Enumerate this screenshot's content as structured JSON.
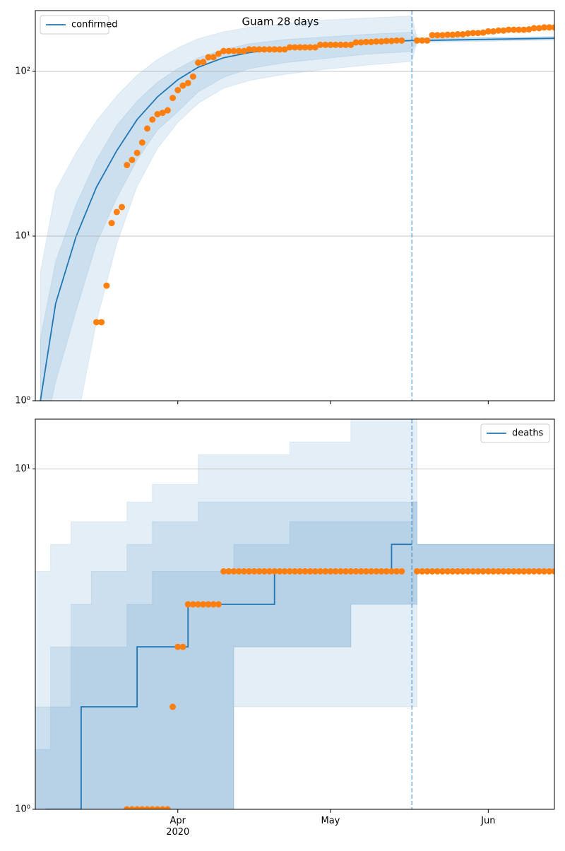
{
  "chart_data": [
    {
      "type": "line",
      "title": "Guam 28 days",
      "yscale": "log",
      "ylim": [
        1,
        234
      ],
      "xlim": [
        "2020-03-04",
        "2020-06-14"
      ],
      "yticks": [
        {
          "value": 1,
          "label": "10⁰"
        },
        {
          "value": 10,
          "label": "10¹"
        },
        {
          "value": 100,
          "label": "10²"
        }
      ],
      "grid": true,
      "legend": "upper left",
      "vline": "2020-05-17",
      "bands": {
        "color": "#1f77b4",
        "x": [
          "2020-03-05",
          "2020-03-08",
          "2020-03-12",
          "2020-03-16",
          "2020-03-20",
          "2020-03-24",
          "2020-03-28",
          "2020-04-01",
          "2020-04-05",
          "2020-04-10",
          "2020-04-15",
          "2020-04-22",
          "2020-04-30",
          "2020-05-08",
          "2020-05-17",
          "2020-05-18",
          "2020-06-14"
        ],
        "list": [
          {
            "lower": [
              0.2,
              0.3,
              0.7,
              3,
              9,
              20,
              34,
              49,
              64,
              79,
              88,
              96,
              103,
              109,
              115,
              150,
              155
            ],
            "upper": [
              6,
              19,
              32,
              50,
              71,
              95,
              118,
              139,
              158,
              174,
              185,
              195,
              205,
              211,
              217,
              160,
              163
            ]
          },
          {
            "lower": [
              0.5,
              1.3,
              3.5,
              9,
              17,
              29,
              44,
              57,
              75,
              92,
              104,
              113,
              120,
              127,
              132,
              152,
              157
            ],
            "upper": [
              2.4,
              7,
              15.5,
              29,
              47,
              66,
              86,
              104,
              121,
              136,
              147,
              156,
              162,
              168,
              173,
              158,
              162
            ]
          }
        ]
      },
      "series": [
        {
          "name": "confirmed",
          "color": "#1f77b4",
          "x": [
            "2020-03-05",
            "2020-03-08",
            "2020-03-12",
            "2020-03-16",
            "2020-03-20",
            "2020-03-24",
            "2020-03-28",
            "2020-04-01",
            "2020-04-05",
            "2020-04-10",
            "2020-04-15",
            "2020-04-22",
            "2020-04-30",
            "2020-05-08",
            "2020-05-17",
            "2020-05-18",
            "2020-06-14"
          ],
          "values": [
            1,
            3.9,
            9.9,
            19.8,
            33,
            51,
            70,
            89,
            106,
            121,
            130,
            139,
            143,
            150,
            154,
            154,
            159
          ]
        },
        {
          "marker": "o",
          "color": "#ff7f0e",
          "x": [
            "2020-03-16",
            "2020-03-17",
            "2020-03-18",
            "2020-03-19",
            "2020-03-20",
            "2020-03-21",
            "2020-03-22",
            "2020-03-23",
            "2020-03-24",
            "2020-03-25",
            "2020-03-26",
            "2020-03-27",
            "2020-03-28",
            "2020-03-29",
            "2020-03-30",
            "2020-03-31",
            "2020-04-01",
            "2020-04-02",
            "2020-04-03",
            "2020-04-04",
            "2020-04-05",
            "2020-04-06",
            "2020-04-07",
            "2020-04-08",
            "2020-04-09",
            "2020-04-10",
            "2020-04-11",
            "2020-04-12",
            "2020-04-13",
            "2020-04-14",
            "2020-04-15",
            "2020-04-16",
            "2020-04-17",
            "2020-04-18",
            "2020-04-19",
            "2020-04-20",
            "2020-04-21",
            "2020-04-22",
            "2020-04-23",
            "2020-04-24",
            "2020-04-25",
            "2020-04-26",
            "2020-04-27",
            "2020-04-28",
            "2020-04-29",
            "2020-04-30",
            "2020-05-01",
            "2020-05-02",
            "2020-05-03",
            "2020-05-04",
            "2020-05-05",
            "2020-05-06",
            "2020-05-07",
            "2020-05-08",
            "2020-05-09",
            "2020-05-10",
            "2020-05-11",
            "2020-05-12",
            "2020-05-13",
            "2020-05-14",
            "2020-05-15",
            "2020-05-18",
            "2020-05-19",
            "2020-05-20",
            "2020-05-21",
            "2020-05-22",
            "2020-05-23",
            "2020-05-24",
            "2020-05-25",
            "2020-05-26",
            "2020-05-27",
            "2020-05-28",
            "2020-05-29",
            "2020-05-30",
            "2020-05-31",
            "2020-06-01",
            "2020-06-02",
            "2020-06-03",
            "2020-06-04",
            "2020-06-05",
            "2020-06-06",
            "2020-06-07",
            "2020-06-08",
            "2020-06-09",
            "2020-06-10",
            "2020-06-11",
            "2020-06-12",
            "2020-06-13",
            "2020-06-14"
          ],
          "values": [
            3,
            3,
            5,
            12,
            14,
            15,
            27,
            29,
            32,
            37,
            45,
            51,
            55,
            56,
            58,
            69,
            77,
            82,
            85,
            93,
            113,
            114,
            122,
            122,
            128,
            133,
            133,
            133,
            133,
            133,
            136,
            136,
            136,
            136,
            136,
            136,
            136,
            136,
            140,
            140,
            140,
            140,
            140,
            140,
            145,
            145,
            145,
            145,
            145,
            145,
            145,
            150,
            150,
            151,
            151,
            152,
            152,
            153,
            153,
            154,
            154,
            154,
            154,
            154,
            166,
            166,
            166,
            167,
            167,
            168,
            168,
            170,
            171,
            171,
            172,
            175,
            175,
            177,
            177,
            179,
            179,
            179,
            179,
            180,
            183,
            183,
            185,
            185,
            185
          ]
        }
      ]
    },
    {
      "type": "line",
      "yscale": "log",
      "ylim": [
        1,
        14
      ],
      "xlim": [
        "2020-03-04",
        "2020-06-14"
      ],
      "drawstyle": "steps-post",
      "yticks": [
        {
          "value": 1,
          "label": "10⁰"
        },
        {
          "value": 10,
          "label": "10¹"
        }
      ],
      "xticks": [
        {
          "value": "2020-04-01",
          "label": "Apr\n2020"
        },
        {
          "value": "2020-05-01",
          "label": "May"
        },
        {
          "value": "2020-06-01",
          "label": "Jun"
        }
      ],
      "grid": true,
      "legend": "upper right",
      "vline": "2020-05-17",
      "bands": {
        "color": "#1f77b4",
        "x": [
          "2020-03-04",
          "2020-03-07",
          "2020-03-11",
          "2020-03-15",
          "2020-03-22",
          "2020-03-27",
          "2020-04-05",
          "2020-04-12",
          "2020-04-23",
          "2020-05-05",
          "2020-05-17",
          "2020-05-18",
          "2020-06-14"
        ],
        "list": [
          {
            "lower": [
              0.9,
              0.9,
              0.9,
              0.9,
              0.9,
              0.9,
              0.9,
              2,
              2,
              2,
              2,
              5,
              5
            ],
            "upper": [
              5,
              6,
              7,
              7,
              8,
              9,
              11,
              11,
              12,
              14,
              14,
              6,
              8
            ]
          },
          {
            "lower": [
              0.9,
              0.9,
              0.9,
              0.9,
              0.9,
              0.9,
              0.9,
              3,
              3,
              4,
              4,
              5,
              5
            ],
            "upper": [
              2,
              3,
              4,
              5,
              6,
              7,
              8,
              8,
              8,
              8,
              8,
              6,
              7
            ]
          },
          {
            "lower": [
              0.9,
              0.9,
              0.9,
              0.9,
              0.9,
              0.9,
              1,
              3,
              3,
              4,
              4,
              5,
              5
            ],
            "upper": [
              1.5,
              2,
              3,
              3,
              4,
              5,
              5,
              6,
              7,
              7,
              8,
              6,
              6
            ]
          }
        ]
      },
      "series": [
        {
          "name": "deaths",
          "color": "#1f77b4",
          "x": [
            "2020-03-06",
            "2020-03-13",
            "2020-03-24",
            "2020-04-03",
            "2020-04-20",
            "2020-05-13",
            "2020-05-17"
          ],
          "values": [
            1,
            2,
            3,
            4,
            5,
            6,
            6
          ]
        },
        {
          "marker": "o",
          "color": "#ff7f0e",
          "x": [
            "2020-03-22",
            "2020-03-23",
            "2020-03-24",
            "2020-03-25",
            "2020-03-26",
            "2020-03-27",
            "2020-03-28",
            "2020-03-29",
            "2020-03-30",
            "2020-03-31",
            "2020-04-01",
            "2020-04-02",
            "2020-04-03",
            "2020-04-04",
            "2020-04-05",
            "2020-04-06",
            "2020-04-07",
            "2020-04-08",
            "2020-04-09",
            "2020-04-10",
            "2020-04-11",
            "2020-04-12",
            "2020-04-13",
            "2020-04-14",
            "2020-04-15",
            "2020-04-16",
            "2020-04-17",
            "2020-04-18",
            "2020-04-19",
            "2020-04-20",
            "2020-04-21",
            "2020-04-22",
            "2020-04-23",
            "2020-04-24",
            "2020-04-25",
            "2020-04-26",
            "2020-04-27",
            "2020-04-28",
            "2020-04-29",
            "2020-04-30",
            "2020-05-01",
            "2020-05-02",
            "2020-05-03",
            "2020-05-04",
            "2020-05-05",
            "2020-05-06",
            "2020-05-07",
            "2020-05-08",
            "2020-05-09",
            "2020-05-10",
            "2020-05-11",
            "2020-05-12",
            "2020-05-13",
            "2020-05-14",
            "2020-05-15",
            "2020-05-18",
            "2020-05-19",
            "2020-05-20",
            "2020-05-21",
            "2020-05-22",
            "2020-05-23",
            "2020-05-24",
            "2020-05-25",
            "2020-05-26",
            "2020-05-27",
            "2020-05-28",
            "2020-05-29",
            "2020-05-30",
            "2020-05-31",
            "2020-06-01",
            "2020-06-02",
            "2020-06-03",
            "2020-06-04",
            "2020-06-05",
            "2020-06-06",
            "2020-06-07",
            "2020-06-08",
            "2020-06-09",
            "2020-06-10",
            "2020-06-11",
            "2020-06-12",
            "2020-06-13",
            "2020-06-14"
          ],
          "values": [
            1,
            1,
            1,
            1,
            1,
            1,
            1,
            1,
            1,
            2,
            3,
            3,
            4,
            4,
            4,
            4,
            4,
            4,
            4,
            5,
            5,
            5,
            5,
            5,
            5,
            5,
            5,
            5,
            5,
            5,
            5,
            5,
            5,
            5,
            5,
            5,
            5,
            5,
            5,
            5,
            5,
            5,
            5,
            5,
            5,
            5,
            5,
            5,
            5,
            5,
            5,
            5,
            5,
            5,
            5,
            5,
            5,
            5,
            5,
            5,
            5,
            5,
            5,
            5,
            5,
            5,
            5,
            5,
            5,
            5,
            5,
            5,
            5,
            5,
            5,
            5,
            5,
            5,
            5,
            5,
            5,
            5,
            5
          ]
        }
      ]
    }
  ]
}
